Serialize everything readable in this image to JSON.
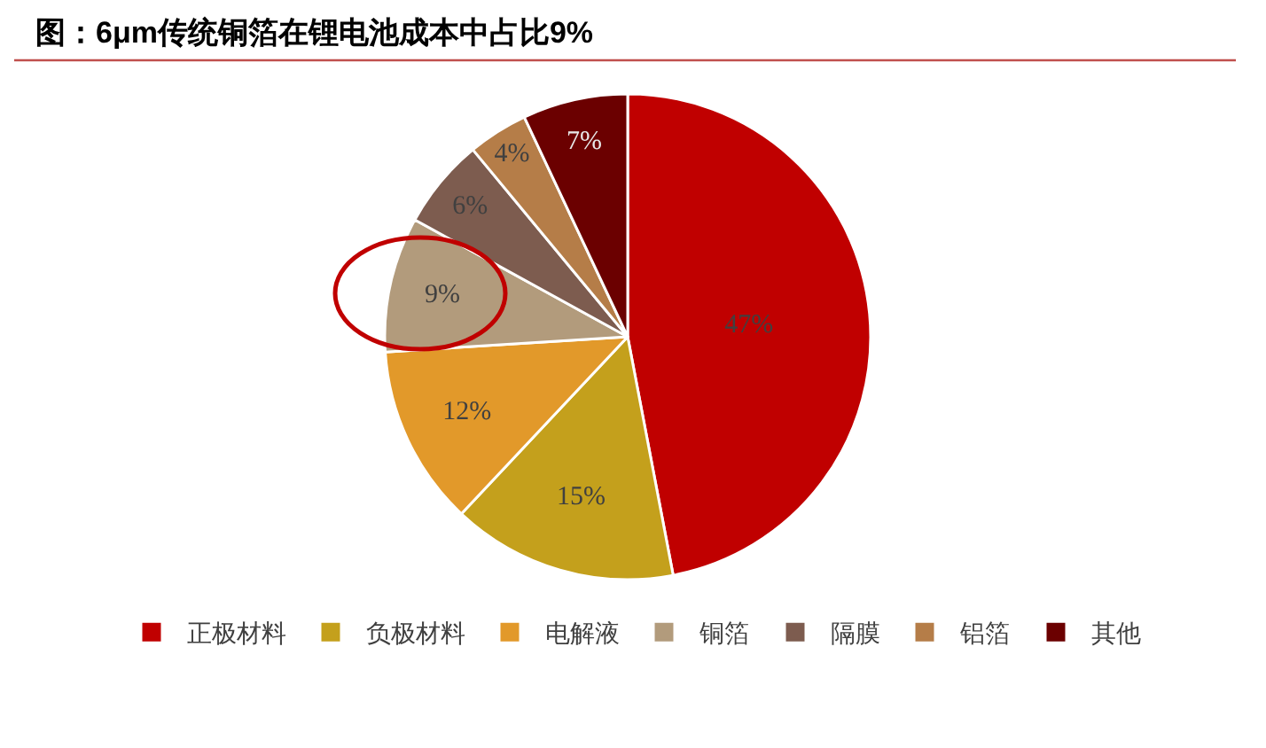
{
  "chart_data": {
    "type": "pie",
    "title": "图：6μm传统铜箔在锂电池成本中占比9%",
    "categories": [
      "正极材料",
      "负极材料",
      "电解液",
      "铜箔",
      "隔膜",
      "铝箔",
      "其他"
    ],
    "values": [
      47,
      15,
      12,
      9,
      6,
      4,
      7
    ],
    "value_labels": [
      "47%",
      "15%",
      "12%",
      "9%",
      "6%",
      "4%",
      "7%"
    ],
    "colors": [
      "#c00000",
      "#c4a01c",
      "#e2992a",
      "#b29b7c",
      "#7d5c4f",
      "#b57d48",
      "#6b0000"
    ],
    "legend": "bottom"
  }
}
